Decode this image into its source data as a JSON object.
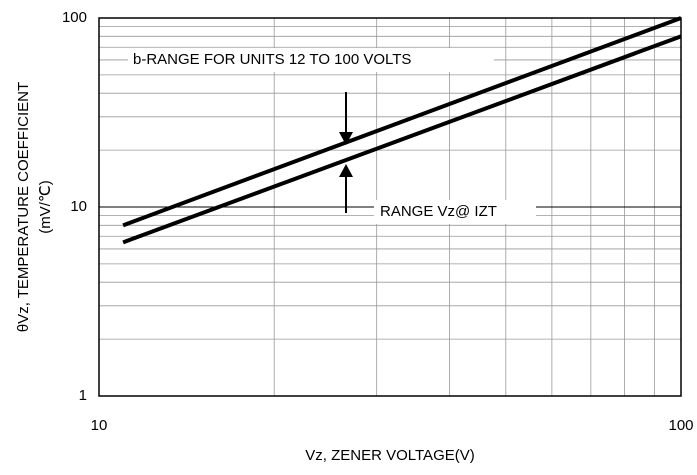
{
  "chart_data": {
    "type": "line",
    "xlabel": "Vz, ZENER VOLTAGE(V)",
    "ylabel": [
      "θVz, TEMPERATURE COEFFICIENT",
      "(mV/℃)"
    ],
    "xlog": true,
    "ylog": true,
    "grid": true,
    "xlim": [
      10,
      100
    ],
    "ylim": [
      1,
      100
    ],
    "xticks": [
      10,
      100
    ],
    "yticks": [
      1,
      10,
      100
    ],
    "xminor": [
      20,
      30,
      40,
      50,
      60,
      70,
      80,
      90
    ],
    "yminor": [
      2,
      3,
      4,
      5,
      6,
      7,
      8,
      9,
      20,
      30,
      40,
      50,
      60,
      70,
      80,
      90
    ],
    "series": [
      {
        "color": "#000000",
        "x": [
          11,
          100
        ],
        "values": [
          8,
          100
        ]
      },
      {
        "color": "#000000",
        "x": [
          11,
          100
        ],
        "values": [
          6.5,
          80
        ]
      }
    ],
    "annotations": [
      "b-RANGE FOR UNITS 12 TO 100 VOLTS",
      "RANGE Vz@ IZT"
    ]
  }
}
